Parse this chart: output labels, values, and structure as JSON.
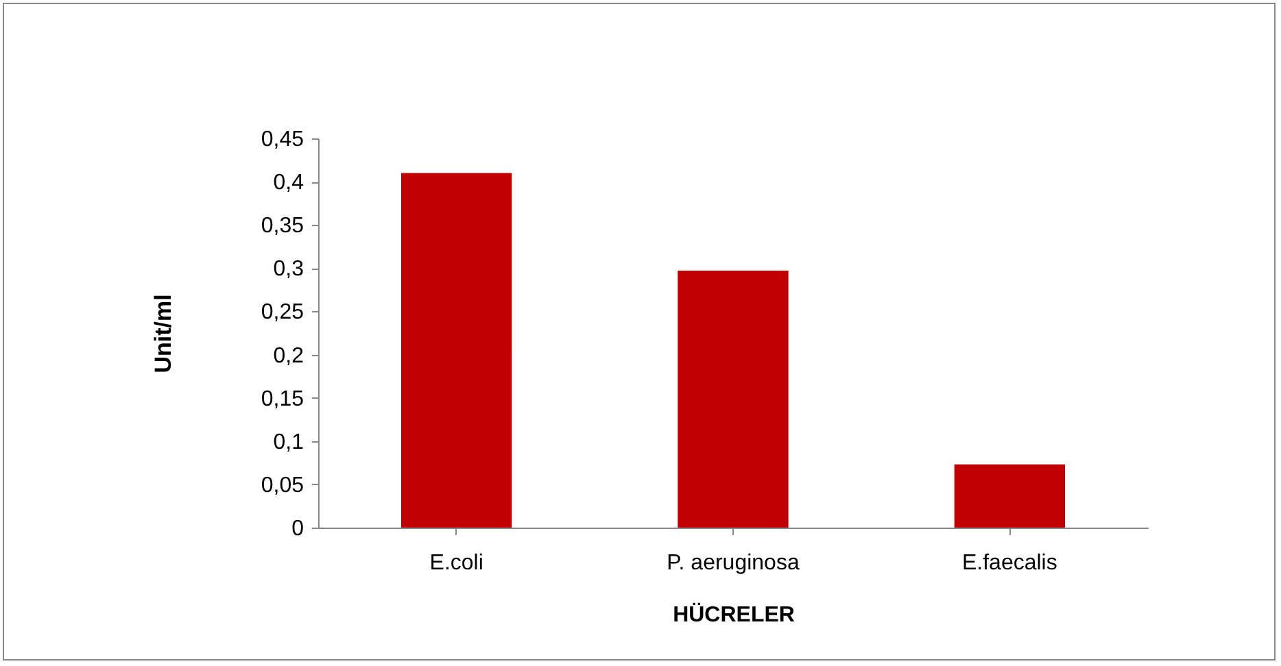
{
  "chart_data": {
    "type": "bar",
    "xlabel": "HÜCRELER",
    "ylabel": "Unit/ml",
    "categories": [
      "E.coli",
      "P. aeruginosa",
      "E.faecalis"
    ],
    "values": [
      0.41,
      0.297,
      0.073
    ],
    "color": "#c00000",
    "ylim": [
      0,
      0.45
    ],
    "yticks": [
      0,
      {
        "value": 0.05,
        "label": "0,05"
      },
      {
        "value": 0.1,
        "label": "0,1"
      },
      {
        "value": 0.15,
        "label": "0,15"
      },
      {
        "value": 0.2,
        "label": "0,2"
      },
      {
        "value": 0.25,
        "label": "0,25"
      },
      {
        "value": 0.3,
        "label": "0,3"
      },
      {
        "value": 0.35,
        "label": "0,35"
      },
      {
        "value": 0.4,
        "label": "0,4"
      },
      {
        "value": 0.45,
        "label": "0,45"
      }
    ],
    "grid": false
  }
}
